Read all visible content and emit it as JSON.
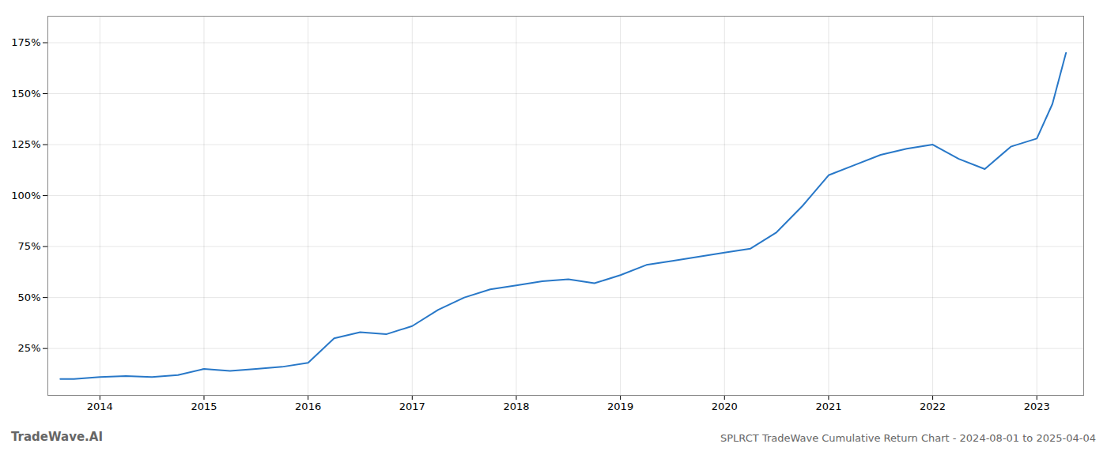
{
  "chart_data": {
    "type": "line",
    "title": "SPLRCT TradeWave Cumulative Return Chart - 2024-08-01 to 2025-04-04",
    "annotations": [
      "TradeWave.AI"
    ],
    "x": [
      2013.62,
      2013.75,
      2014.0,
      2014.25,
      2014.5,
      2014.75,
      2015.0,
      2015.25,
      2015.5,
      2015.75,
      2016.0,
      2016.25,
      2016.5,
      2016.75,
      2017.0,
      2017.25,
      2017.5,
      2017.75,
      2018.0,
      2018.25,
      2018.5,
      2018.75,
      2019.0,
      2019.25,
      2019.5,
      2019.75,
      2020.0,
      2020.25,
      2020.5,
      2020.75,
      2021.0,
      2021.25,
      2021.5,
      2021.75,
      2022.0,
      2022.25,
      2022.5,
      2022.75,
      2023.0,
      2023.15,
      2023.28
    ],
    "values": [
      10,
      10,
      11,
      11.5,
      11,
      12,
      15,
      14,
      15,
      16,
      18,
      30,
      33,
      32,
      36,
      44,
      50,
      54,
      56,
      58,
      59,
      57,
      61,
      66,
      68,
      70,
      72,
      74,
      82,
      95,
      110,
      115,
      120,
      123,
      125,
      118,
      113,
      124,
      128,
      145,
      170
    ],
    "color": "#2878c8",
    "xlim": [
      2013.5,
      2023.45
    ],
    "xticks": [
      2014,
      2015,
      2016,
      2017,
      2018,
      2019,
      2020,
      2021,
      2022,
      2023
    ],
    "ylim": [
      2,
      188
    ],
    "yticks": [
      {
        "value": 25,
        "label": "25%"
      },
      {
        "value": 50,
        "label": "50%"
      },
      {
        "value": 75,
        "label": "75%"
      },
      {
        "value": 100,
        "label": "100%"
      },
      {
        "value": 125,
        "label": "125%"
      },
      {
        "value": 150,
        "label": "150%"
      },
      {
        "value": 175,
        "label": "175%"
      }
    ],
    "grid": true
  }
}
